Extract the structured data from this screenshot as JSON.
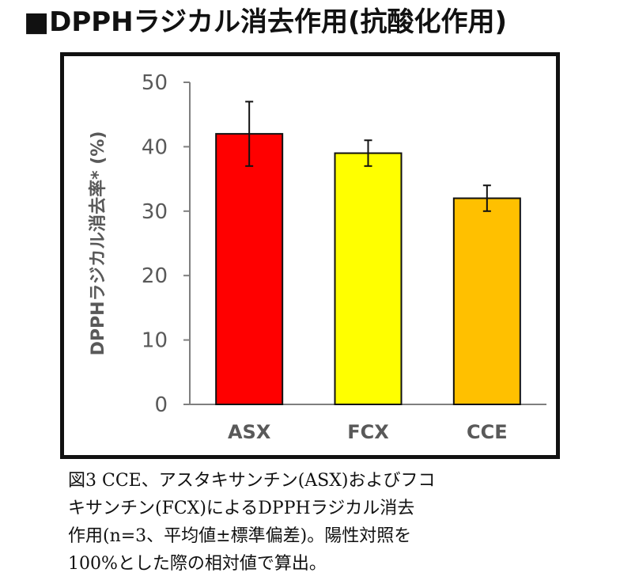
{
  "title": "■DPPHラジカル消去作用(抗酸化作用)",
  "chart_data": {
    "type": "bar",
    "categories": [
      "ASX",
      "FCX",
      "CCE"
    ],
    "values": [
      42,
      39,
      32
    ],
    "error": [
      5,
      2,
      2
    ],
    "colors": [
      "#ff0000",
      "#ffff00",
      "#ffc000"
    ],
    "ylabel": "DPPHラジカル消去率* (%)",
    "xlabel": "",
    "ylim": [
      0,
      50
    ],
    "yticks": [
      0,
      10,
      20,
      30,
      40,
      50
    ],
    "grid": false,
    "legend": "none"
  },
  "caption": {
    "lines": [
      "図3 CCE、アスタキサンチン(ASX)およびフコ",
      "キサンチン(FCX)によるDPPHラジカル消去",
      "作用(n=3、平均値±標準偏差)。陽性対照を",
      "100%とした際の相対値で算出。"
    ]
  }
}
